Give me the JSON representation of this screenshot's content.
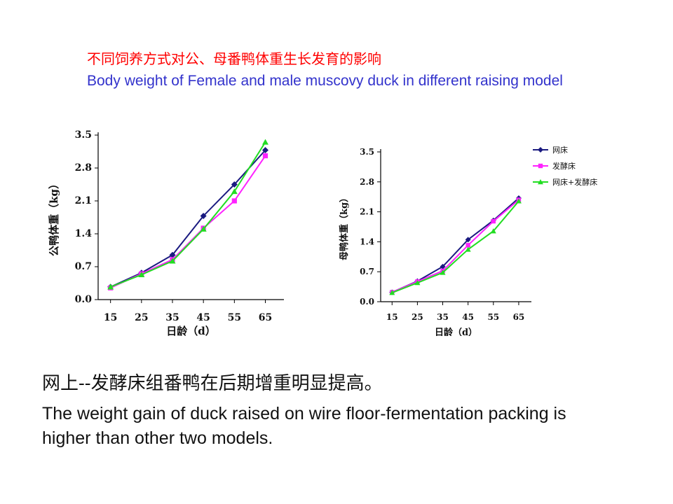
{
  "title_cn": "不同饲养方式对公、母番鸭体重生长发育的影响",
  "title_en": "Body weight of Female and male muscovy  duck in different raising model",
  "caption_cn": "网上--发酵床组番鸭在后期增重明显提高。",
  "caption_en": "The weight gain of duck raised  on wire floor-fermentation packing is higher than other two models.",
  "colors": {
    "series1": "#1a1a80",
    "series2": "#ff22ff",
    "series3": "#22dd22"
  },
  "chart_data": [
    {
      "type": "line",
      "xlabel": "日龄（d）",
      "ylabel": "公鸭体重（kg）",
      "x": [
        15,
        25,
        35,
        45,
        55,
        65
      ],
      "ylim": [
        0.0,
        3.5
      ],
      "yticks": [
        "0.0",
        "0.7",
        "1.4",
        "2.1",
        "2.8",
        "3.5"
      ],
      "xticks": [
        "15",
        "25",
        "35",
        "45",
        "55",
        "65"
      ],
      "legend": null,
      "series": [
        {
          "name": "网床",
          "marker": "diamond",
          "values": [
            0.27,
            0.57,
            0.95,
            1.78,
            2.45,
            3.18
          ]
        },
        {
          "name": "发酵床",
          "marker": "square",
          "values": [
            0.25,
            0.55,
            0.85,
            1.52,
            2.1,
            3.06
          ]
        },
        {
          "name": "网床+发酵床",
          "marker": "triangle",
          "values": [
            0.27,
            0.53,
            0.82,
            1.5,
            2.3,
            3.35
          ]
        }
      ]
    },
    {
      "type": "line",
      "xlabel": "日龄（d）",
      "ylabel": "母鸭体重（kg）",
      "x": [
        15,
        25,
        35,
        45,
        55,
        65
      ],
      "ylim": [
        0.0,
        3.5
      ],
      "yticks": [
        "0.0",
        "0.7",
        "1.4",
        "2.1",
        "2.8",
        "3.5"
      ],
      "xticks": [
        "15",
        "25",
        "35",
        "45",
        "55",
        "65"
      ],
      "legend": "top-right",
      "series": [
        {
          "name": "网床",
          "marker": "diamond",
          "values": [
            0.22,
            0.48,
            0.82,
            1.45,
            1.9,
            2.42
          ]
        },
        {
          "name": "发酵床",
          "marker": "square",
          "values": [
            0.22,
            0.47,
            0.72,
            1.32,
            1.88,
            2.38
          ]
        },
        {
          "name": "网床+发酵床",
          "marker": "triangle",
          "values": [
            0.21,
            0.44,
            0.68,
            1.22,
            1.65,
            2.35
          ]
        }
      ]
    }
  ]
}
